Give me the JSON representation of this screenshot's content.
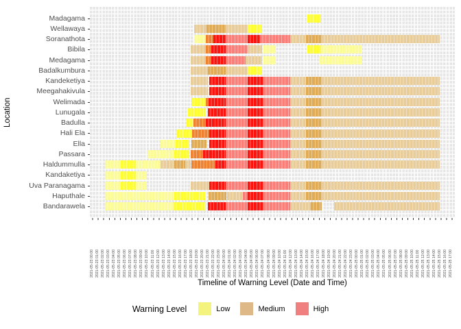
{
  "legend": {
    "title": "Warning Level",
    "position": "bottom",
    "items": [
      {
        "label": "Low",
        "color": "#F3F37E"
      },
      {
        "label": "Medium",
        "color": "#DEB887"
      },
      {
        "label": "High",
        "color": "#F08080"
      }
    ]
  },
  "chart_data": {
    "type": "heatmap",
    "title": "",
    "xlabel": "Timeline of Warning Level (Date and Time)",
    "ylabel": "Location",
    "grid": true,
    "legend_position": "bottom",
    "levels_palette": {
      "Y1": "#FBFB98",
      "Y2": "#FEFE33",
      "M1": "#E8CC99",
      "M2": "#DFAB55",
      "O": "#EE8230",
      "R1": "#FA7F78",
      "R2": "#FB150E"
    },
    "level_meaning": {
      "Y1": "Low (pale)",
      "Y2": "Low (bright)",
      "M1": "Medium (light)",
      "M2": "Medium (dark)",
      "O": "Medium/High transition (orange)",
      "R1": "High (salmon)",
      "R2": "High (bright red)"
    },
    "x_tick_labels": [
      "2021-05-23 00:00",
      "2021-05-23 01:00",
      "2021-05-23 02:00",
      "2021-05-23 03:00",
      "2021-05-23 04:00",
      "2021-05-23 05:00",
      "2021-05-23 06:00",
      "2021-05-23 07:00",
      "2021-05-23 08:00",
      "2021-05-23 09:00",
      "2021-05-23 10:00",
      "2021-05-23 11:00",
      "2021-05-23 12:00",
      "2021-05-23 13:00",
      "2021-05-23 14:00",
      "2021-05-23 15:00",
      "2021-05-23 16:00",
      "2021-05-23 17:00",
      "2021-05-23 18:00",
      "2021-05-23 19:00",
      "2021-05-23 20:00",
      "2021-05-23 21:00",
      "2021-05-23 22:00",
      "2021-05-23 23:00",
      "2021-05-24 00:00",
      "2021-05-24 01:00",
      "2021-05-24 02:00",
      "2021-05-24 03:00",
      "2021-05-24 04:00",
      "2021-05-24 05:00",
      "2021-05-24 06:00",
      "2021-05-24 07:00",
      "2021-05-24 08:00",
      "2021-05-24 09:00",
      "2021-05-24 10:00",
      "2021-05-24 11:00",
      "2021-05-24 12:00",
      "2021-05-24 13:00",
      "2021-05-24 14:00",
      "2021-05-24 15:00",
      "2021-05-24 16:00",
      "2021-05-24 17:00",
      "2021-05-24 18:00",
      "2021-05-24 19:00",
      "2021-05-24 20:00",
      "2021-05-24 21:00",
      "2021-05-24 22:00",
      "2021-05-24 23:00",
      "2021-05-25 00:00",
      "2021-05-25 01:00",
      "2021-05-25 02:00",
      "2021-05-25 03:00",
      "2021-05-25 04:00",
      "2021-05-25 05:00",
      "2021-05-25 06:00",
      "2021-05-25 07:00",
      "2021-05-25 08:00",
      "2021-05-25 09:00",
      "2021-05-25 10:00",
      "2021-05-25 11:00",
      "2021-05-25 12:00",
      "2021-05-25 13:00",
      "2021-05-25 14:00",
      "2021-05-25 15:00",
      "2021-05-25 16:00",
      "2021-05-25 17:00"
    ],
    "rows": [
      {
        "location": "Madagama",
        "segments": [
          [
            59.6,
            63.4,
            "Y2"
          ]
        ]
      },
      {
        "location": "Wellawaya",
        "segments": [
          [
            28.6,
            32.0,
            "M1"
          ],
          [
            32.0,
            37.3,
            "M2"
          ],
          [
            37.3,
            43.3,
            "M1"
          ],
          [
            43.3,
            47.1,
            "Y2"
          ]
        ]
      },
      {
        "location": "Soranathota",
        "segments": [
          [
            28.6,
            31.7,
            "Y1"
          ],
          [
            31.7,
            33.9,
            "O"
          ],
          [
            33.9,
            37.3,
            "R2"
          ],
          [
            37.3,
            43.3,
            "R1"
          ],
          [
            43.3,
            46.6,
            "R2"
          ],
          [
            46.6,
            54.8,
            "R1"
          ],
          [
            54.8,
            59.3,
            "M1"
          ],
          [
            59.3,
            63.5,
            "M2"
          ],
          [
            63.5,
            95.9,
            "M1"
          ]
        ]
      },
      {
        "location": "Bibila",
        "segments": [
          [
            27.7,
            31.8,
            "M1"
          ],
          [
            31.8,
            33.2,
            "O"
          ],
          [
            33.2,
            37.3,
            "R2"
          ],
          [
            37.3,
            43.3,
            "R1"
          ],
          [
            43.3,
            47.1,
            "M1"
          ],
          [
            47.6,
            50.9,
            "Y1"
          ],
          [
            59.6,
            63.4,
            "Y2"
          ],
          [
            63.4,
            74.7,
            "Y1"
          ]
        ]
      },
      {
        "location": "Medagama",
        "segments": [
          [
            27.7,
            31.8,
            "M1"
          ],
          [
            31.8,
            33.2,
            "O"
          ],
          [
            33.2,
            37.3,
            "R2"
          ],
          [
            37.3,
            42.7,
            "R1"
          ],
          [
            42.7,
            47.1,
            "M1"
          ],
          [
            47.6,
            50.9,
            "Y1"
          ],
          [
            63.0,
            74.7,
            "Y1"
          ]
        ]
      },
      {
        "location": "Badalkumbura",
        "segments": [
          [
            27.7,
            32.3,
            "M1"
          ],
          [
            32.3,
            37.3,
            "M2"
          ],
          [
            37.3,
            43.3,
            "M1"
          ],
          [
            43.3,
            47.1,
            "Y2"
          ]
        ]
      },
      {
        "location": "Kandeketiya",
        "segments": [
          [
            27.7,
            32.3,
            "M1"
          ],
          [
            32.7,
            37.3,
            "R2"
          ],
          [
            37.3,
            43.3,
            "R1"
          ],
          [
            43.3,
            47.6,
            "R2"
          ],
          [
            47.6,
            54.8,
            "R1"
          ],
          [
            54.8,
            59.3,
            "M1"
          ],
          [
            59.3,
            63.5,
            "M2"
          ],
          [
            63.5,
            95.9,
            "M1"
          ]
        ]
      },
      {
        "location": "Meegahakivula",
        "segments": [
          [
            27.7,
            32.3,
            "M1"
          ],
          [
            32.7,
            37.3,
            "R2"
          ],
          [
            37.3,
            43.3,
            "R1"
          ],
          [
            43.3,
            47.6,
            "R2"
          ],
          [
            47.6,
            54.8,
            "R1"
          ],
          [
            54.8,
            59.3,
            "M1"
          ],
          [
            59.3,
            63.5,
            "M2"
          ],
          [
            63.5,
            95.9,
            "M1"
          ]
        ]
      },
      {
        "location": "Welimada",
        "segments": [
          [
            27.9,
            31.7,
            "Y2"
          ],
          [
            31.7,
            32.6,
            "O"
          ],
          [
            32.6,
            37.3,
            "R2"
          ],
          [
            37.3,
            43.3,
            "R1"
          ],
          [
            43.3,
            47.6,
            "R2"
          ],
          [
            47.6,
            54.8,
            "R1"
          ],
          [
            54.8,
            59.3,
            "M1"
          ],
          [
            59.3,
            63.5,
            "M2"
          ],
          [
            63.5,
            95.9,
            "M1"
          ]
        ]
      },
      {
        "location": "Lunugala",
        "segments": [
          [
            26.8,
            31.7,
            "Y2"
          ],
          [
            32.3,
            37.3,
            "R2"
          ],
          [
            37.3,
            43.3,
            "R1"
          ],
          [
            43.3,
            47.6,
            "R2"
          ],
          [
            47.6,
            54.8,
            "R1"
          ],
          [
            54.8,
            59.3,
            "M1"
          ],
          [
            59.3,
            63.5,
            "M2"
          ],
          [
            63.5,
            95.9,
            "M1"
          ]
        ]
      },
      {
        "location": "Badulla",
        "segments": [
          [
            26.5,
            28.4,
            "Y2"
          ],
          [
            28.4,
            31.8,
            "O"
          ],
          [
            31.8,
            37.3,
            "R2"
          ],
          [
            37.3,
            43.3,
            "R1"
          ],
          [
            43.3,
            47.6,
            "R2"
          ],
          [
            47.6,
            54.8,
            "R1"
          ],
          [
            54.8,
            59.3,
            "M1"
          ],
          [
            59.3,
            63.5,
            "M2"
          ],
          [
            63.5,
            95.9,
            "M1"
          ]
        ]
      },
      {
        "location": "Hali Ela",
        "segments": [
          [
            23.9,
            28.1,
            "Y2"
          ],
          [
            28.1,
            32.8,
            "O"
          ],
          [
            32.8,
            37.3,
            "R2"
          ],
          [
            37.3,
            43.3,
            "R1"
          ],
          [
            43.3,
            47.6,
            "R2"
          ],
          [
            47.6,
            54.8,
            "R1"
          ],
          [
            54.8,
            59.3,
            "M1"
          ],
          [
            59.3,
            63.5,
            "M2"
          ],
          [
            63.5,
            95.9,
            "M1"
          ]
        ]
      },
      {
        "location": "Ella",
        "segments": [
          [
            19.4,
            23.5,
            "Y1"
          ],
          [
            23.5,
            27.3,
            "Y2"
          ],
          [
            27.9,
            32.0,
            "M2"
          ],
          [
            32.7,
            37.3,
            "R2"
          ],
          [
            37.3,
            43.3,
            "R1"
          ],
          [
            43.3,
            47.6,
            "R2"
          ],
          [
            47.6,
            54.8,
            "R1"
          ],
          [
            54.8,
            59.3,
            "M1"
          ],
          [
            59.3,
            63.5,
            "M2"
          ],
          [
            63.5,
            95.9,
            "M1"
          ]
        ]
      },
      {
        "location": "Passara",
        "segments": [
          [
            15.7,
            23.2,
            "Y1"
          ],
          [
            23.2,
            27.0,
            "Y2"
          ],
          [
            27.7,
            31.0,
            "O"
          ],
          [
            31.0,
            37.3,
            "R2"
          ],
          [
            37.3,
            43.3,
            "R1"
          ],
          [
            43.3,
            47.6,
            "R2"
          ],
          [
            47.6,
            54.8,
            "R1"
          ],
          [
            54.8,
            59.3,
            "M1"
          ],
          [
            59.3,
            63.5,
            "M2"
          ],
          [
            63.5,
            95.9,
            "M1"
          ]
        ]
      },
      {
        "location": "Haldummulla",
        "segments": [
          [
            4.1,
            8.5,
            "Y1"
          ],
          [
            8.5,
            12.6,
            "Y2"
          ],
          [
            12.6,
            19.4,
            "Y1"
          ],
          [
            19.4,
            23.2,
            "M1"
          ],
          [
            23.2,
            26.2,
            "M2"
          ],
          [
            26.2,
            27.7,
            "M1"
          ],
          [
            27.9,
            34.4,
            "O"
          ],
          [
            34.4,
            37.3,
            "R2"
          ],
          [
            37.3,
            43.3,
            "R1"
          ],
          [
            43.3,
            47.6,
            "R2"
          ],
          [
            47.6,
            54.8,
            "R1"
          ],
          [
            54.8,
            59.3,
            "M1"
          ],
          [
            59.3,
            63.5,
            "M2"
          ],
          [
            63.5,
            95.9,
            "M1"
          ]
        ]
      },
      {
        "location": "Kandaketiya",
        "segments": [
          [
            4.1,
            8.5,
            "Y1"
          ],
          [
            8.5,
            12.6,
            "Y2"
          ],
          [
            12.6,
            15.6,
            "Y1"
          ]
        ]
      },
      {
        "location": "Uva Paranagama",
        "segments": [
          [
            4.1,
            8.5,
            "Y1"
          ],
          [
            8.5,
            12.6,
            "Y2"
          ],
          [
            12.6,
            15.6,
            "Y1"
          ],
          [
            27.7,
            32.8,
            "M1"
          ],
          [
            32.8,
            37.3,
            "R2"
          ],
          [
            37.3,
            43.3,
            "R1"
          ],
          [
            43.3,
            47.6,
            "R2"
          ],
          [
            47.6,
            54.8,
            "R1"
          ],
          [
            54.8,
            59.3,
            "M1"
          ],
          [
            59.3,
            63.5,
            "M2"
          ],
          [
            63.5,
            95.9,
            "M1"
          ]
        ]
      },
      {
        "location": "Haputhale",
        "segments": [
          [
            4.1,
            23.2,
            "Y1"
          ],
          [
            23.2,
            31.8,
            "Y2"
          ],
          [
            32.6,
            37.5,
            "M2"
          ],
          [
            37.5,
            42.0,
            "M1"
          ],
          [
            42.0,
            43.3,
            "R1"
          ],
          [
            43.3,
            47.6,
            "R2"
          ],
          [
            47.6,
            54.8,
            "R1"
          ],
          [
            54.8,
            59.3,
            "M1"
          ],
          [
            59.3,
            63.5,
            "M2"
          ],
          [
            63.5,
            95.9,
            "M1"
          ]
        ]
      },
      {
        "location": "Bandarawela",
        "segments": [
          [
            4.1,
            22.9,
            "Y1"
          ],
          [
            22.9,
            31.8,
            "Y2"
          ],
          [
            32.3,
            37.3,
            "R2"
          ],
          [
            37.3,
            43.3,
            "R1"
          ],
          [
            43.3,
            47.6,
            "R2"
          ],
          [
            47.6,
            54.8,
            "R1"
          ],
          [
            54.8,
            60.5,
            "M1"
          ],
          [
            60.5,
            63.5,
            "M2"
          ],
          [
            67.0,
            95.9,
            "M1"
          ]
        ]
      }
    ]
  }
}
